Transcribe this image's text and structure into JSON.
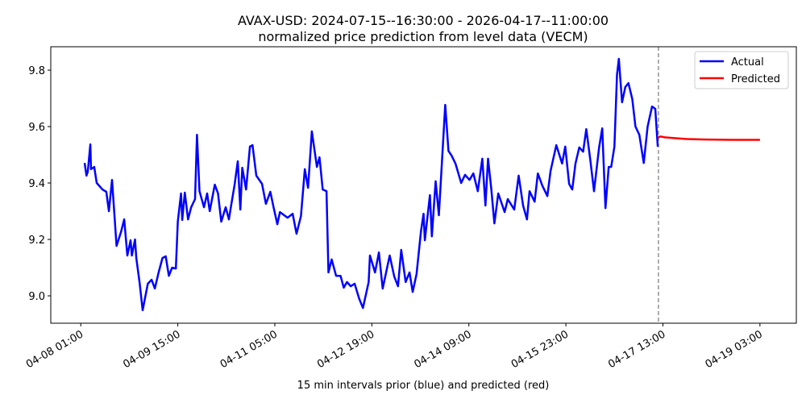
{
  "chart_data": {
    "type": "line",
    "title": "AVAX-USD: 2024-07-15--16:30:00 - 2026-04-17--11:00:00",
    "subtitle": "normalized price prediction from level data (VECM)",
    "xlabel": "15 min intervals prior (blue) and predicted (red)",
    "ylabel": "",
    "x_unit": "15-minute intervals since 04-08 01:00",
    "xlim": [
      -47,
      1121
    ],
    "ylim": [
      8.903,
      9.883
    ],
    "grid": false,
    "legend_position": "top-right",
    "x_ticks": [
      {
        "x": 0,
        "label": "04-08 01:00"
      },
      {
        "x": 152,
        "label": "04-09 15:00"
      },
      {
        "x": 304,
        "label": "04-11 05:00"
      },
      {
        "x": 456,
        "label": "04-12 19:00"
      },
      {
        "x": 608,
        "label": "04-14 09:00"
      },
      {
        "x": 760,
        "label": "04-15 23:00"
      },
      {
        "x": 912,
        "label": "04-17 13:00"
      },
      {
        "x": 1064,
        "label": "04-19 03:00"
      }
    ],
    "y_ticks": [
      {
        "y": 9.0,
        "label": "9.0"
      },
      {
        "y": 9.2,
        "label": "9.2"
      },
      {
        "y": 9.4,
        "label": "9.4"
      },
      {
        "y": 9.6,
        "label": "9.6"
      },
      {
        "y": 9.8,
        "label": "9.8"
      }
    ],
    "forecast_start_x": 905,
    "series": [
      {
        "name": "Actual",
        "color": "#0000ff",
        "points": [
          [
            6,
            9.471
          ],
          [
            9,
            9.426
          ],
          [
            11,
            9.44
          ],
          [
            15,
            9.537
          ],
          [
            16,
            9.449
          ],
          [
            21,
            9.457
          ],
          [
            25,
            9.4
          ],
          [
            34,
            9.377
          ],
          [
            40,
            9.369
          ],
          [
            44,
            9.3
          ],
          [
            49,
            9.411
          ],
          [
            56,
            9.177
          ],
          [
            63,
            9.226
          ],
          [
            68,
            9.271
          ],
          [
            73,
            9.143
          ],
          [
            78,
            9.197
          ],
          [
            80,
            9.143
          ],
          [
            85,
            9.2
          ],
          [
            87,
            9.134
          ],
          [
            92,
            9.049
          ],
          [
            97,
            8.949
          ],
          [
            105,
            9.043
          ],
          [
            111,
            9.057
          ],
          [
            116,
            9.026
          ],
          [
            122,
            9.083
          ],
          [
            128,
            9.134
          ],
          [
            133,
            9.14
          ],
          [
            138,
            9.071
          ],
          [
            143,
            9.1
          ],
          [
            149,
            9.097
          ],
          [
            152,
            9.263
          ],
          [
            157,
            9.363
          ],
          [
            159,
            9.269
          ],
          [
            163,
            9.366
          ],
          [
            168,
            9.271
          ],
          [
            173,
            9.314
          ],
          [
            179,
            9.343
          ],
          [
            182,
            9.571
          ],
          [
            186,
            9.371
          ],
          [
            193,
            9.314
          ],
          [
            198,
            9.363
          ],
          [
            202,
            9.3
          ],
          [
            210,
            9.394
          ],
          [
            215,
            9.363
          ],
          [
            220,
            9.263
          ],
          [
            227,
            9.314
          ],
          [
            232,
            9.271
          ],
          [
            236,
            9.326
          ],
          [
            241,
            9.394
          ],
          [
            246,
            9.477
          ],
          [
            250,
            9.306
          ],
          [
            253,
            9.454
          ],
          [
            259,
            9.377
          ],
          [
            265,
            9.529
          ],
          [
            269,
            9.534
          ],
          [
            275,
            9.426
          ],
          [
            284,
            9.397
          ],
          [
            290,
            9.326
          ],
          [
            297,
            9.369
          ],
          [
            302,
            9.314
          ],
          [
            308,
            9.254
          ],
          [
            312,
            9.297
          ],
          [
            324,
            9.277
          ],
          [
            332,
            9.291
          ],
          [
            338,
            9.22
          ],
          [
            345,
            9.283
          ],
          [
            351,
            9.449
          ],
          [
            356,
            9.383
          ],
          [
            362,
            9.583
          ],
          [
            370,
            9.457
          ],
          [
            374,
            9.491
          ],
          [
            379,
            9.377
          ],
          [
            385,
            9.371
          ],
          [
            388,
            9.083
          ],
          [
            393,
            9.129
          ],
          [
            400,
            9.071
          ],
          [
            407,
            9.071
          ],
          [
            412,
            9.029
          ],
          [
            417,
            9.049
          ],
          [
            423,
            9.034
          ],
          [
            429,
            9.043
          ],
          [
            436,
            8.991
          ],
          [
            442,
            8.957
          ],
          [
            451,
            9.049
          ],
          [
            453,
            9.143
          ],
          [
            461,
            9.083
          ],
          [
            467,
            9.154
          ],
          [
            473,
            9.026
          ],
          [
            484,
            9.143
          ],
          [
            491,
            9.069
          ],
          [
            497,
            9.034
          ],
          [
            502,
            9.163
          ],
          [
            509,
            9.049
          ],
          [
            515,
            9.083
          ],
          [
            520,
            9.014
          ],
          [
            526,
            9.077
          ],
          [
            533,
            9.229
          ],
          [
            537,
            9.291
          ],
          [
            539,
            9.197
          ],
          [
            547,
            9.357
          ],
          [
            550,
            9.211
          ],
          [
            556,
            9.406
          ],
          [
            561,
            9.286
          ],
          [
            571,
            9.677
          ],
          [
            576,
            9.514
          ],
          [
            581,
            9.497
          ],
          [
            587,
            9.469
          ],
          [
            596,
            9.4
          ],
          [
            602,
            9.429
          ],
          [
            609,
            9.411
          ],
          [
            615,
            9.434
          ],
          [
            622,
            9.371
          ],
          [
            629,
            9.486
          ],
          [
            634,
            9.32
          ],
          [
            638,
            9.486
          ],
          [
            643,
            9.383
          ],
          [
            648,
            9.257
          ],
          [
            654,
            9.363
          ],
          [
            664,
            9.297
          ],
          [
            669,
            9.343
          ],
          [
            679,
            9.306
          ],
          [
            686,
            9.426
          ],
          [
            693,
            9.32
          ],
          [
            699,
            9.271
          ],
          [
            703,
            9.371
          ],
          [
            711,
            9.334
          ],
          [
            716,
            9.434
          ],
          [
            723,
            9.391
          ],
          [
            731,
            9.354
          ],
          [
            736,
            9.443
          ],
          [
            745,
            9.534
          ],
          [
            754,
            9.469
          ],
          [
            759,
            9.529
          ],
          [
            765,
            9.397
          ],
          [
            770,
            9.377
          ],
          [
            775,
            9.469
          ],
          [
            781,
            9.526
          ],
          [
            787,
            9.511
          ],
          [
            792,
            9.591
          ],
          [
            798,
            9.486
          ],
          [
            804,
            9.371
          ],
          [
            812,
            9.526
          ],
          [
            817,
            9.594
          ],
          [
            822,
            9.311
          ],
          [
            827,
            9.457
          ],
          [
            831,
            9.457
          ],
          [
            836,
            9.529
          ],
          [
            840,
            9.783
          ],
          [
            843,
            9.84
          ],
          [
            848,
            9.686
          ],
          [
            853,
            9.74
          ],
          [
            858,
            9.754
          ],
          [
            864,
            9.697
          ],
          [
            869,
            9.6
          ],
          [
            875,
            9.571
          ],
          [
            882,
            9.471
          ],
          [
            888,
            9.6
          ],
          [
            895,
            9.671
          ],
          [
            900,
            9.663
          ],
          [
            904,
            9.529
          ]
        ]
      },
      {
        "name": "Predicted",
        "color": "#ff0000",
        "points": [
          [
            904,
            9.56
          ],
          [
            908,
            9.565
          ],
          [
            915,
            9.562
          ],
          [
            930,
            9.559
          ],
          [
            950,
            9.556
          ],
          [
            980,
            9.554
          ],
          [
            1020,
            9.553
          ],
          [
            1064,
            9.553
          ]
        ]
      }
    ]
  }
}
